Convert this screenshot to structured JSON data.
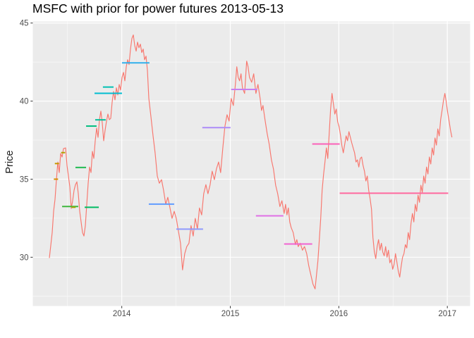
{
  "chart_data": {
    "type": "line",
    "title": "MSFC with prior for power futures 2013-05-13",
    "xlabel": "",
    "ylabel": "Price",
    "legend": "none",
    "grid": "on",
    "panel_background": "#EBEBEB",
    "gridline_color": "#FFFFFF",
    "axis_text_color": "#4D4D4D",
    "tick_mark_color": "#333333",
    "line_color": "#F8766D",
    "xlim": [
      2013.18,
      2017.21
    ],
    "ylim": [
      26.88,
      45.1
    ],
    "axes": {
      "x": {
        "tick_values": [
          2014,
          2015,
          2016,
          2017
        ],
        "tick_labels": [
          "2014",
          "2015",
          "2016",
          "2017"
        ],
        "minor_ticks": [
          2013.5,
          2014.5,
          2015.5,
          2016.5
        ]
      },
      "y": {
        "label": "Price",
        "tick_values": [
          30,
          35,
          40,
          45
        ],
        "tick_labels": [
          "30",
          "35",
          "40",
          "45"
        ],
        "minor_ticks": [
          27.5,
          32.5,
          37.5,
          42.5
        ]
      }
    },
    "priors": [
      {
        "start": 2013.374,
        "end": 2013.413,
        "price": 35.0,
        "color": "#D98E00"
      },
      {
        "start": 2013.383,
        "end": 2013.422,
        "price": 36.0,
        "color": "#C69800"
      },
      {
        "start": 2013.441,
        "end": 2013.478,
        "price": 36.7,
        "color": "#B3A100"
      },
      {
        "start": 2013.45,
        "end": 2013.599,
        "price": 33.25,
        "color": "#3EB73E"
      },
      {
        "start": 2013.538,
        "end": 2013.575,
        "price": 33.2,
        "color": "#A0A600"
      },
      {
        "start": 2013.573,
        "end": 2013.671,
        "price": 35.75,
        "color": "#20BA50"
      },
      {
        "start": 2013.658,
        "end": 2013.788,
        "price": 33.2,
        "color": "#00BB62"
      },
      {
        "start": 2013.671,
        "end": 2013.768,
        "price": 38.4,
        "color": "#00BD7E"
      },
      {
        "start": 2013.749,
        "end": 2014.002,
        "price": 40.5,
        "color": "#00BCD0"
      },
      {
        "start": 2013.755,
        "end": 2013.852,
        "price": 38.8,
        "color": "#00BF98"
      },
      {
        "start": 2013.826,
        "end": 2013.924,
        "price": 40.9,
        "color": "#00C0B2"
      },
      {
        "start": 2014.002,
        "end": 2014.255,
        "price": 42.45,
        "color": "#2FAEEA"
      },
      {
        "start": 2014.249,
        "end": 2014.483,
        "price": 33.4,
        "color": "#619CFF"
      },
      {
        "start": 2014.502,
        "end": 2014.749,
        "price": 31.8,
        "color": "#8F9AFC"
      },
      {
        "start": 2014.742,
        "end": 2015.002,
        "price": 38.3,
        "color": "#AD8BF8"
      },
      {
        "start": 2015.008,
        "end": 2015.249,
        "price": 40.75,
        "color": "#C77FF2"
      },
      {
        "start": 2015.236,
        "end": 2015.489,
        "price": 32.65,
        "color": "#E070E6"
      },
      {
        "start": 2015.496,
        "end": 2015.755,
        "price": 30.85,
        "color": "#F163D2"
      },
      {
        "start": 2015.755,
        "end": 2016.008,
        "price": 37.25,
        "color": "#FB61B9"
      },
      {
        "start": 2016.008,
        "end": 2017.008,
        "price": 34.1,
        "color": "#FF689E"
      }
    ],
    "series": [
      {
        "name": "MSFC",
        "color": "#F8766D",
        "points": [
          [
            2013.333,
            29.95
          ],
          [
            2013.359,
            31.58
          ],
          [
            2013.372,
            32.94
          ],
          [
            2013.385,
            33.71
          ],
          [
            2013.398,
            34.97
          ],
          [
            2013.411,
            36.1
          ],
          [
            2013.424,
            35.42
          ],
          [
            2013.437,
            36.64
          ],
          [
            2013.45,
            36.42
          ],
          [
            2013.463,
            36.96
          ],
          [
            2013.482,
            37.0
          ],
          [
            2013.495,
            35.88
          ],
          [
            2013.508,
            35.2
          ],
          [
            2013.521,
            34.52
          ],
          [
            2013.534,
            33.12
          ],
          [
            2013.547,
            33.62
          ],
          [
            2013.56,
            34.29
          ],
          [
            2013.573,
            34.65
          ],
          [
            2013.586,
            34.83
          ],
          [
            2013.599,
            34.07
          ],
          [
            2013.612,
            32.94
          ],
          [
            2013.625,
            32.26
          ],
          [
            2013.638,
            31.58
          ],
          [
            2013.651,
            31.36
          ],
          [
            2013.664,
            32.03
          ],
          [
            2013.677,
            33.39
          ],
          [
            2013.69,
            34.74
          ],
          [
            2013.703,
            35.78
          ],
          [
            2013.716,
            35.42
          ],
          [
            2013.729,
            36.78
          ],
          [
            2013.742,
            36.33
          ],
          [
            2013.755,
            37.46
          ],
          [
            2013.768,
            38.27
          ],
          [
            2013.781,
            37.68
          ],
          [
            2013.794,
            38.81
          ],
          [
            2013.807,
            39.36
          ],
          [
            2013.82,
            38.59
          ],
          [
            2013.833,
            37.46
          ],
          [
            2013.846,
            38.13
          ],
          [
            2013.859,
            38.72
          ],
          [
            2013.872,
            39.17
          ],
          [
            2013.885,
            38.81
          ],
          [
            2013.898,
            38.9
          ],
          [
            2013.911,
            39.94
          ],
          [
            2013.924,
            40.62
          ],
          [
            2013.937,
            40.08
          ],
          [
            2013.95,
            40.85
          ],
          [
            2013.963,
            40.39
          ],
          [
            2013.976,
            41.07
          ],
          [
            2013.989,
            40.71
          ],
          [
            2014.002,
            41.52
          ],
          [
            2014.015,
            41.84
          ],
          [
            2014.028,
            41.3
          ],
          [
            2014.041,
            42.2
          ],
          [
            2014.054,
            42.65
          ],
          [
            2014.067,
            42.34
          ],
          [
            2014.08,
            43.33
          ],
          [
            2014.093,
            44.01
          ],
          [
            2014.106,
            44.24
          ],
          [
            2014.119,
            43.56
          ],
          [
            2014.132,
            43.2
          ],
          [
            2014.145,
            43.78
          ],
          [
            2014.158,
            43.42
          ],
          [
            2014.171,
            43.65
          ],
          [
            2014.184,
            43.11
          ],
          [
            2014.197,
            43.33
          ],
          [
            2014.21,
            42.65
          ],
          [
            2014.223,
            42.88
          ],
          [
            2014.236,
            41.97
          ],
          [
            2014.249,
            40.17
          ],
          [
            2014.268,
            39.04
          ],
          [
            2014.288,
            37.77
          ],
          [
            2014.307,
            36.69
          ],
          [
            2014.327,
            35.2
          ],
          [
            2014.346,
            34.74
          ],
          [
            2014.366,
            34.97
          ],
          [
            2014.385,
            34.29
          ],
          [
            2014.405,
            33.39
          ],
          [
            2014.424,
            33.84
          ],
          [
            2014.444,
            33.16
          ],
          [
            2014.463,
            32.49
          ],
          [
            2014.483,
            32.94
          ],
          [
            2014.502,
            32.49
          ],
          [
            2014.521,
            31.72
          ],
          [
            2014.541,
            30.9
          ],
          [
            2014.56,
            29.19
          ],
          [
            2014.58,
            30.23
          ],
          [
            2014.599,
            30.68
          ],
          [
            2014.619,
            30.9
          ],
          [
            2014.638,
            32.03
          ],
          [
            2014.658,
            31.36
          ],
          [
            2014.677,
            32.49
          ],
          [
            2014.697,
            31.81
          ],
          [
            2014.716,
            33.16
          ],
          [
            2014.736,
            32.71
          ],
          [
            2014.755,
            34.07
          ],
          [
            2014.775,
            34.65
          ],
          [
            2014.794,
            34.07
          ],
          [
            2014.814,
            34.65
          ],
          [
            2014.833,
            35.51
          ],
          [
            2014.853,
            34.97
          ],
          [
            2014.872,
            35.65
          ],
          [
            2014.892,
            36.1
          ],
          [
            2014.911,
            35.42
          ],
          [
            2014.931,
            37.0
          ],
          [
            2014.95,
            38.36
          ],
          [
            2014.97,
            39.13
          ],
          [
            2014.989,
            38.72
          ],
          [
            2015.008,
            40.17
          ],
          [
            2015.028,
            39.72
          ],
          [
            2015.047,
            41.07
          ],
          [
            2015.06,
            42.2
          ],
          [
            2015.073,
            41.52
          ],
          [
            2015.086,
            41.3
          ],
          [
            2015.099,
            41.75
          ],
          [
            2015.112,
            40.85
          ],
          [
            2015.132,
            40.49
          ],
          [
            2015.151,
            42.56
          ],
          [
            2015.164,
            42.2
          ],
          [
            2015.177,
            41.52
          ],
          [
            2015.197,
            41.21
          ],
          [
            2015.216,
            41.75
          ],
          [
            2015.236,
            40.49
          ],
          [
            2015.255,
            41.07
          ],
          [
            2015.275,
            40.17
          ],
          [
            2015.288,
            39.4
          ],
          [
            2015.301,
            39.72
          ],
          [
            2015.32,
            38.81
          ],
          [
            2015.34,
            37.91
          ],
          [
            2015.359,
            37.23
          ],
          [
            2015.379,
            36.24
          ],
          [
            2015.398,
            35.65
          ],
          [
            2015.418,
            34.61
          ],
          [
            2015.437,
            34.07
          ],
          [
            2015.457,
            33.25
          ],
          [
            2015.476,
            33.62
          ],
          [
            2015.496,
            32.8
          ],
          [
            2015.509,
            33.39
          ],
          [
            2015.522,
            32.71
          ],
          [
            2015.535,
            33.16
          ],
          [
            2015.548,
            32.26
          ],
          [
            2015.561,
            31.9
          ],
          [
            2015.58,
            31.58
          ],
          [
            2015.6,
            30.81
          ],
          [
            2015.613,
            31.13
          ],
          [
            2015.626,
            30.68
          ],
          [
            2015.645,
            30.9
          ],
          [
            2015.665,
            30.45
          ],
          [
            2015.684,
            30.68
          ],
          [
            2015.704,
            30.23
          ],
          [
            2015.723,
            29.46
          ],
          [
            2015.742,
            28.87
          ],
          [
            2015.762,
            28.28
          ],
          [
            2015.781,
            27.97
          ],
          [
            2015.794,
            28.87
          ],
          [
            2015.807,
            29.77
          ],
          [
            2015.82,
            31.13
          ],
          [
            2015.833,
            32.49
          ],
          [
            2015.846,
            34.29
          ],
          [
            2015.859,
            35.29
          ],
          [
            2015.872,
            36.1
          ],
          [
            2015.885,
            37.0
          ],
          [
            2015.898,
            36.33
          ],
          [
            2015.911,
            37.91
          ],
          [
            2015.924,
            39.49
          ],
          [
            2015.937,
            40.49
          ],
          [
            2015.95,
            39.81
          ],
          [
            2015.963,
            39.17
          ],
          [
            2015.976,
            39.49
          ],
          [
            2015.989,
            38.68
          ],
          [
            2016.002,
            38.36
          ],
          [
            2016.015,
            37.82
          ],
          [
            2016.028,
            37.14
          ],
          [
            2016.041,
            36.69
          ],
          [
            2016.054,
            37.23
          ],
          [
            2016.067,
            37.77
          ],
          [
            2016.08,
            37.46
          ],
          [
            2016.093,
            38.04
          ],
          [
            2016.106,
            37.68
          ],
          [
            2016.119,
            37.32
          ],
          [
            2016.132,
            37.0
          ],
          [
            2016.145,
            36.69
          ],
          [
            2016.158,
            36.1
          ],
          [
            2016.171,
            36.24
          ],
          [
            2016.184,
            35.78
          ],
          [
            2016.197,
            36.33
          ],
          [
            2016.21,
            36.42
          ],
          [
            2016.223,
            35.88
          ],
          [
            2016.236,
            35.51
          ],
          [
            2016.249,
            34.88
          ],
          [
            2016.262,
            35.2
          ],
          [
            2016.275,
            34.29
          ],
          [
            2016.288,
            33.75
          ],
          [
            2016.301,
            33.07
          ],
          [
            2016.314,
            31.27
          ],
          [
            2016.327,
            30.36
          ],
          [
            2016.34,
            29.91
          ],
          [
            2016.353,
            30.68
          ],
          [
            2016.366,
            31.13
          ],
          [
            2016.379,
            30.45
          ],
          [
            2016.392,
            30.9
          ],
          [
            2016.405,
            30.32
          ],
          [
            2016.418,
            30.09
          ],
          [
            2016.431,
            30.68
          ],
          [
            2016.444,
            30.0
          ],
          [
            2016.457,
            30.45
          ],
          [
            2016.47,
            29.64
          ],
          [
            2016.483,
            29.86
          ],
          [
            2016.496,
            29.23
          ],
          [
            2016.509,
            29.55
          ],
          [
            2016.522,
            30.23
          ],
          [
            2016.535,
            29.68
          ],
          [
            2016.548,
            29.1
          ],
          [
            2016.561,
            28.73
          ],
          [
            2016.574,
            29.41
          ],
          [
            2016.587,
            30.0
          ],
          [
            2016.6,
            30.23
          ],
          [
            2016.613,
            30.81
          ],
          [
            2016.626,
            30.59
          ],
          [
            2016.639,
            31.58
          ],
          [
            2016.652,
            31.13
          ],
          [
            2016.665,
            32.17
          ],
          [
            2016.678,
            32.8
          ],
          [
            2016.691,
            32.26
          ],
          [
            2016.704,
            33.39
          ],
          [
            2016.717,
            32.94
          ],
          [
            2016.73,
            33.98
          ],
          [
            2016.743,
            33.52
          ],
          [
            2016.756,
            34.61
          ],
          [
            2016.769,
            34.16
          ],
          [
            2016.782,
            35.2
          ],
          [
            2016.795,
            34.74
          ],
          [
            2016.808,
            35.78
          ],
          [
            2016.821,
            35.33
          ],
          [
            2016.834,
            36.42
          ],
          [
            2016.847,
            35.97
          ],
          [
            2016.86,
            37.0
          ],
          [
            2016.873,
            36.55
          ],
          [
            2016.886,
            37.64
          ],
          [
            2016.899,
            37.18
          ],
          [
            2016.912,
            38.22
          ],
          [
            2016.925,
            37.77
          ],
          [
            2016.938,
            38.81
          ],
          [
            2016.951,
            39.4
          ],
          [
            2016.964,
            40.03
          ],
          [
            2016.977,
            40.49
          ],
          [
            2016.99,
            39.94
          ],
          [
            2017.003,
            39.26
          ],
          [
            2017.016,
            38.72
          ],
          [
            2017.029,
            38.13
          ],
          [
            2017.042,
            37.68
          ]
        ]
      }
    ]
  }
}
